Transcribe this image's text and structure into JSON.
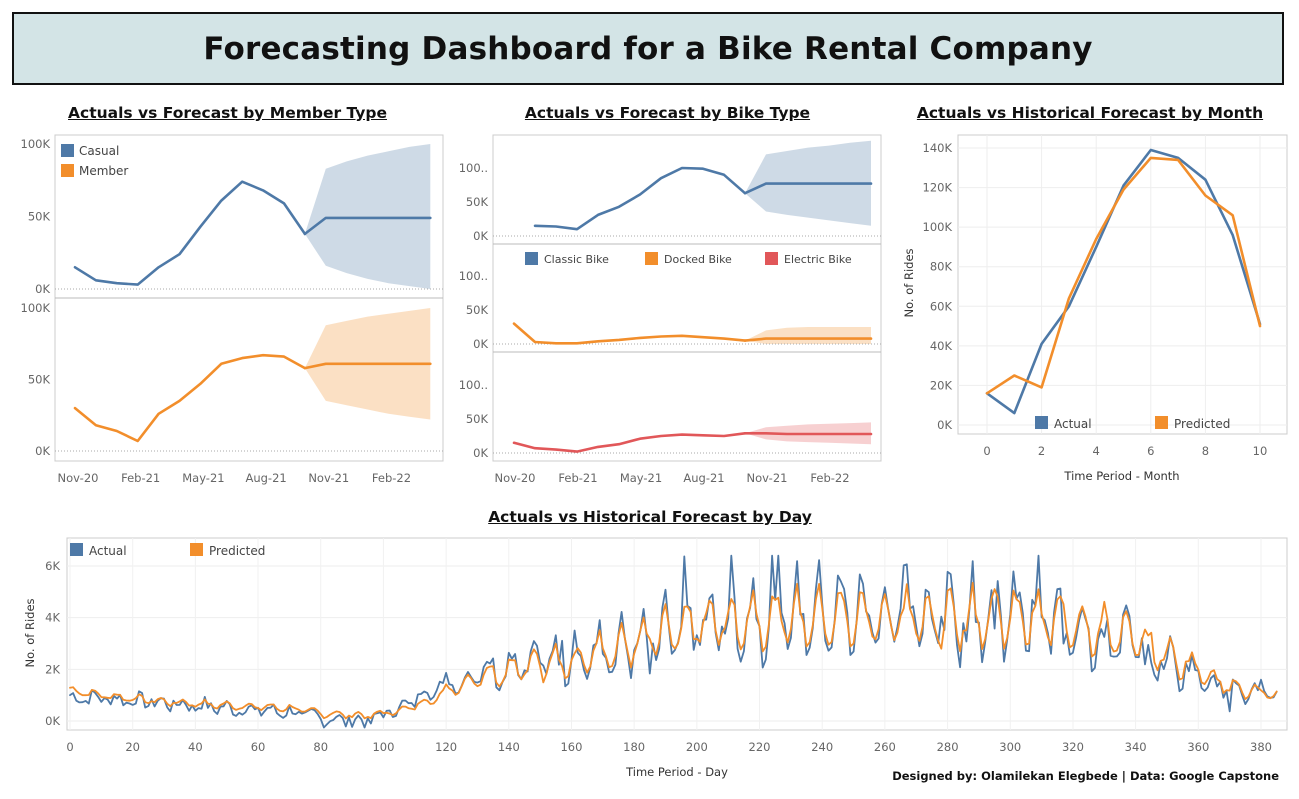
{
  "title": "Forecasting Dashboard for a Bike Rental Company",
  "credit": "Designed by: Olamilekan Elegbede | Data: Google Capstone",
  "colors": {
    "actual": "#4e79a7",
    "forecast": "#f28e2b",
    "electric": "#e15759",
    "header_bg": "#d3e4e6"
  },
  "chart_data": [
    {
      "id": "member",
      "type": "line",
      "title": "Actuals vs Forecast by Member Type",
      "x_ticks": [
        "Nov-20",
        "Feb-21",
        "May-21",
        "Aug-21",
        "Nov-21",
        "Feb-22"
      ],
      "legend": [
        "Casual",
        "Member"
      ],
      "panels": [
        {
          "name": "Casual",
          "y_ticks": [
            "100K",
            "50K",
            "0K"
          ],
          "ylim": [
            0,
            100000
          ],
          "actual": [
            15000,
            6000,
            4000,
            3000,
            15000,
            24000,
            43000,
            61000,
            74000,
            68000,
            59000,
            38000
          ],
          "forecast": [
            38000,
            49000,
            49000,
            49000,
            49000,
            49000,
            49000
          ],
          "upper": [
            38000,
            83000,
            88000,
            92000,
            95000,
            98000,
            100000
          ],
          "lower": [
            38000,
            16000,
            11000,
            7000,
            4000,
            2000,
            0
          ]
        },
        {
          "name": "Member",
          "y_ticks": [
            "100K",
            "50K",
            "0K"
          ],
          "ylim": [
            0,
            100000
          ],
          "actual": [
            30000,
            18000,
            14000,
            7000,
            26000,
            35000,
            47000,
            61000,
            65000,
            67000,
            66000,
            58000
          ],
          "forecast": [
            58000,
            61000,
            61000,
            61000,
            61000,
            61000,
            61000
          ],
          "upper": [
            58000,
            88000,
            91000,
            94000,
            96000,
            98000,
            100000
          ],
          "lower": [
            58000,
            35000,
            32000,
            29000,
            26000,
            24000,
            22000
          ]
        }
      ]
    },
    {
      "id": "bike",
      "type": "line",
      "title": "Actuals vs Forecast by Bike Type",
      "x_ticks": [
        "Nov-20",
        "Feb-21",
        "May-21",
        "Aug-21",
        "Nov-21",
        "Feb-22"
      ],
      "legend": [
        "Classic Bike",
        "Docked Bike",
        "Electric Bike"
      ],
      "panels": [
        {
          "name": "Classic Bike",
          "y_ticks": [
            "100..",
            "50K",
            "0K"
          ],
          "ylim": [
            0,
            100000
          ],
          "actual": [
            null,
            15000,
            14000,
            10000,
            31000,
            43000,
            61000,
            85000,
            100000,
            99000,
            90000,
            63000
          ],
          "forecast": [
            63000,
            77000,
            77000,
            77000,
            77000,
            77000,
            77000
          ],
          "upper": [
            63000,
            120000,
            125000,
            130000,
            133000,
            137000,
            140000
          ],
          "lower": [
            63000,
            36000,
            31000,
            27000,
            23000,
            19000,
            15000
          ]
        },
        {
          "name": "Docked Bike",
          "y_ticks": [
            "100..",
            "50K",
            "0K"
          ],
          "ylim": [
            0,
            100000
          ],
          "actual": [
            30000,
            3000,
            1000,
            1000,
            4000,
            6000,
            9000,
            11000,
            12000,
            10000,
            8000,
            5000
          ],
          "forecast": [
            5000,
            8000,
            8000,
            8000,
            8000,
            8000,
            8000
          ],
          "upper": [
            5000,
            20000,
            24000,
            25000,
            25000,
            25000,
            25000
          ],
          "lower": [
            5000,
            0,
            0,
            0,
            0,
            0,
            0
          ]
        },
        {
          "name": "Electric Bike",
          "y_ticks": [
            "100..",
            "50K",
            "0K"
          ],
          "ylim": [
            0,
            100000
          ],
          "actual": [
            15000,
            7000,
            5000,
            2000,
            9000,
            13000,
            21000,
            25000,
            27000,
            26000,
            25000,
            29000
          ],
          "forecast": [
            29000,
            29000,
            28000,
            28000,
            28000,
            28000,
            28000
          ],
          "upper": [
            29000,
            38000,
            40000,
            42000,
            43000,
            44000,
            45000
          ],
          "lower": [
            29000,
            20000,
            17000,
            16000,
            15000,
            14000,
            13000
          ]
        }
      ]
    },
    {
      "id": "month",
      "type": "line",
      "title": "Actuals vs Historical Forecast by Month",
      "xlabel": "Time Period - Month",
      "ylabel": "No. of Rides",
      "x_ticks": [
        "0",
        "2",
        "4",
        "6",
        "8",
        "10"
      ],
      "y_ticks": [
        "140K",
        "120K",
        "100K",
        "80K",
        "60K",
        "40K",
        "20K",
        "0K"
      ],
      "ylim": [
        0,
        140000
      ],
      "x": [
        0,
        1,
        2,
        3,
        4,
        5,
        6,
        7,
        8,
        9,
        10
      ],
      "series": [
        {
          "name": "Actual",
          "values": [
            16000,
            6000,
            41000,
            60000,
            90000,
            121000,
            139000,
            135000,
            124000,
            96000,
            51000
          ]
        },
        {
          "name": "Predicted",
          "values": [
            16000,
            25000,
            19000,
            64000,
            94000,
            119000,
            135000,
            134000,
            116000,
            106000,
            50000
          ]
        }
      ]
    },
    {
      "id": "day",
      "type": "line",
      "title": "Actuals vs Historical Forecast by Day",
      "xlabel": "Time Period - Day",
      "ylabel": "No. of Rides",
      "x_ticks": [
        "0",
        "20",
        "40",
        "60",
        "80",
        "100",
        "120",
        "140",
        "160",
        "180",
        "200",
        "220",
        "240",
        "260",
        "280",
        "300",
        "320",
        "340",
        "360",
        "380"
      ],
      "y_ticks": [
        "6K",
        "4K",
        "2K",
        "0K"
      ],
      "ylim": [
        -300,
        7000
      ],
      "xlim": [
        0,
        385
      ],
      "series": [
        {
          "name": "Actual",
          "trend_points": [
            [
              0,
              900
            ],
            [
              10,
              900
            ],
            [
              30,
              700
            ],
            [
              50,
              500
            ],
            [
              70,
              350
            ],
            [
              80,
              100
            ],
            [
              95,
              0
            ],
            [
              105,
              500
            ],
            [
              115,
              1200
            ],
            [
              125,
              1700
            ],
            [
              140,
              1900
            ],
            [
              160,
              2400
            ],
            [
              180,
              3000
            ],
            [
              200,
              3800
            ],
            [
              220,
              4100
            ],
            [
              240,
              4200
            ],
            [
              260,
              4100
            ],
            [
              280,
              4100
            ],
            [
              300,
              4100
            ],
            [
              320,
              3800
            ],
            [
              335,
              3300
            ],
            [
              345,
              2600
            ],
            [
              360,
              1800
            ],
            [
              370,
              1200
            ],
            [
              385,
              1000
            ]
          ]
        },
        {
          "name": "Predicted",
          "trend_points": [
            [
              0,
              1200
            ],
            [
              10,
              1000
            ],
            [
              30,
              750
            ],
            [
              50,
              600
            ],
            [
              70,
              500
            ],
            [
              80,
              300
            ],
            [
              95,
              200
            ],
            [
              105,
              400
            ],
            [
              115,
              800
            ],
            [
              125,
              1500
            ],
            [
              140,
              1900
            ],
            [
              160,
              2400
            ],
            [
              180,
              3000
            ],
            [
              200,
              3800
            ],
            [
              220,
              4000
            ],
            [
              240,
              4000
            ],
            [
              260,
              4000
            ],
            [
              280,
              4000
            ],
            [
              300,
              4000
            ],
            [
              320,
              3800
            ],
            [
              335,
              3400
            ],
            [
              345,
              2800
            ],
            [
              360,
              2000
            ],
            [
              370,
              1300
            ],
            [
              385,
              1000
            ]
          ]
        }
      ]
    }
  ]
}
